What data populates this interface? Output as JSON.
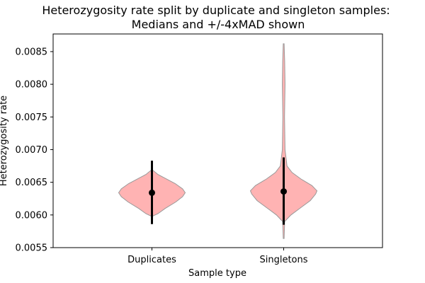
{
  "chart_data": {
    "type": "violin",
    "title": "Heterozygosity rate split by duplicate and singleton samples:",
    "subtitle": "Medians and +/-4xMAD shown",
    "xlabel": "Sample type",
    "ylabel": "Heterozygosity rate",
    "ylim": [
      0.0055,
      0.00877
    ],
    "yticks": [
      "0.0055",
      "0.0060",
      "0.0065",
      "0.0070",
      "0.0075",
      "0.0080",
      "0.0085"
    ],
    "categories": [
      "Duplicates",
      "Singletons"
    ],
    "grid": false,
    "colors": {
      "violin_fill": "#ffb3b3",
      "violin_edge": "#999999",
      "marker": "#000000"
    },
    "series": [
      {
        "category": "Duplicates",
        "median": 0.00634,
        "mad_low": 0.00586,
        "mad_high": 0.00683,
        "min": 0.00598,
        "max": 0.00669,
        "density_profile": [
          [
            0.00598,
            0.0
          ],
          [
            0.00602,
            0.18
          ],
          [
            0.0061,
            0.4
          ],
          [
            0.0062,
            0.72
          ],
          [
            0.00628,
            0.92
          ],
          [
            0.00634,
            1.0
          ],
          [
            0.0064,
            0.92
          ],
          [
            0.00648,
            0.7
          ],
          [
            0.00656,
            0.4
          ],
          [
            0.00662,
            0.18
          ],
          [
            0.00669,
            0.0
          ]
        ]
      },
      {
        "category": "Singletons",
        "median": 0.00636,
        "mad_low": 0.00585,
        "mad_high": 0.00688,
        "min": 0.00564,
        "max": 0.00862,
        "density_profile": [
          [
            0.00564,
            0.0
          ],
          [
            0.0059,
            0.03
          ],
          [
            0.006,
            0.22
          ],
          [
            0.0061,
            0.48
          ],
          [
            0.00622,
            0.8
          ],
          [
            0.00632,
            0.96
          ],
          [
            0.00637,
            1.0
          ],
          [
            0.00645,
            0.85
          ],
          [
            0.00655,
            0.52
          ],
          [
            0.00665,
            0.25
          ],
          [
            0.00675,
            0.1
          ],
          [
            0.007,
            0.04
          ],
          [
            0.0075,
            0.025
          ],
          [
            0.008,
            0.04
          ],
          [
            0.00835,
            0.03
          ],
          [
            0.00862,
            0.0
          ]
        ]
      }
    ]
  }
}
